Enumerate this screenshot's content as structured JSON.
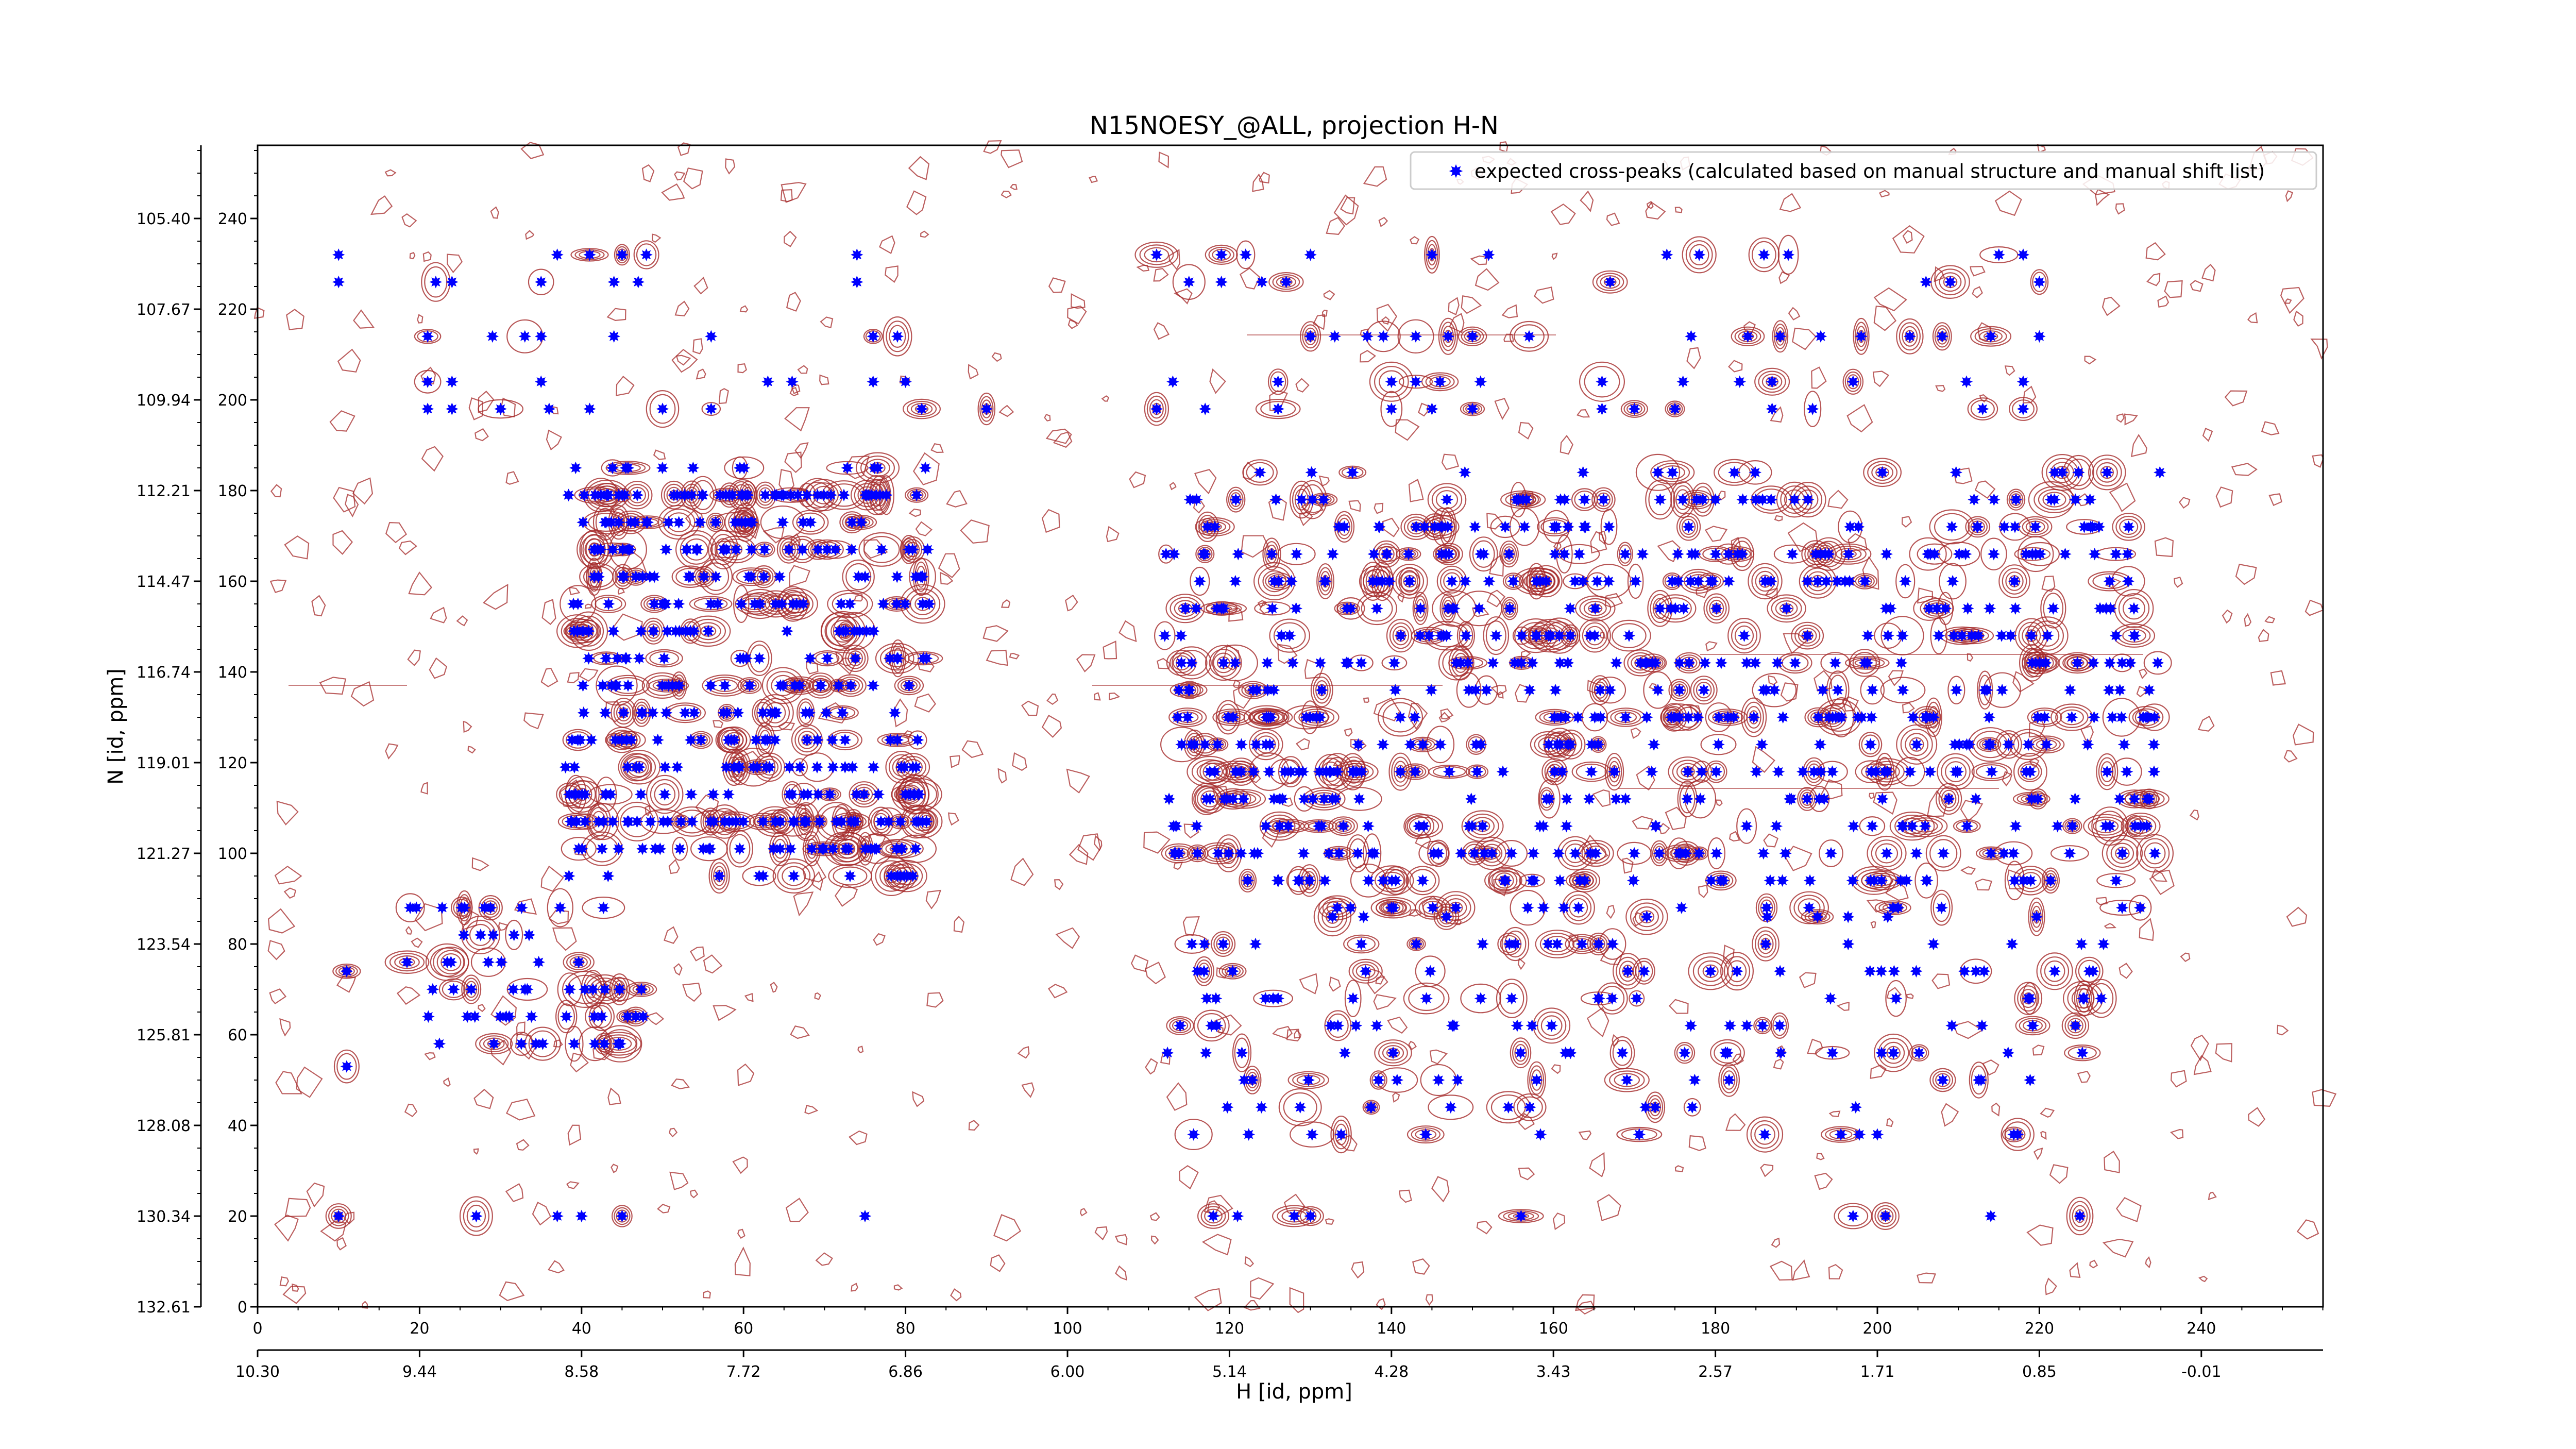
{
  "chart_data": {
    "type": "scatter",
    "title": "N15NOESY_@ALL, projection H-N",
    "xlabel": "H [id, ppm]",
    "ylabel": "N [id, ppm]",
    "xlim": [
      0,
      255
    ],
    "ylim": [
      0,
      256
    ],
    "x_ticks": [
      0,
      20,
      40,
      60,
      80,
      100,
      120,
      140,
      160,
      180,
      200,
      220,
      240
    ],
    "y_ticks": [
      0,
      20,
      40,
      60,
      80,
      100,
      120,
      140,
      160,
      180,
      200,
      220,
      240
    ],
    "x_ppm_ticks": [
      "10.30",
      "9.44",
      "8.58",
      "7.72",
      "6.86",
      "6.00",
      "5.14",
      "4.28",
      "3.43",
      "2.57",
      "1.71",
      "0.85",
      "-0.01"
    ],
    "y_ppm_ticks": [
      "132.61",
      "130.34",
      "128.08",
      "125.81",
      "123.54",
      "121.27",
      "119.01",
      "116.74",
      "114.47",
      "112.21",
      "109.94",
      "107.67",
      "105.40"
    ],
    "grid": false,
    "legend_position": "top-right",
    "legend": [
      "expected cross-peaks (calculated based on manual structure and manual shift list)"
    ],
    "contour_color": "#a52a2a",
    "marker_color": "#0000ff",
    "series": [
      {
        "name": "expected cross-peaks (calculated based on manual structure and manual shift list)",
        "marker": "star",
        "points": [
          [
            10,
            232
          ],
          [
            10,
            226
          ],
          [
            11,
            74
          ],
          [
            11,
            53
          ],
          [
            10,
            20
          ],
          [
            27,
            20
          ],
          [
            37,
            20
          ],
          [
            40,
            20
          ],
          [
            45,
            20
          ],
          [
            75,
            20
          ],
          [
            118,
            20
          ],
          [
            121,
            20
          ],
          [
            128,
            20
          ],
          [
            130,
            20
          ],
          [
            156,
            20
          ],
          [
            197,
            20
          ],
          [
            201,
            20
          ],
          [
            214,
            20
          ],
          [
            225,
            20
          ],
          [
            37,
            232
          ],
          [
            41,
            232
          ],
          [
            45,
            232
          ],
          [
            48,
            232
          ],
          [
            74,
            232
          ],
          [
            111,
            232
          ],
          [
            119,
            232
          ],
          [
            122,
            232
          ],
          [
            130,
            232
          ],
          [
            145,
            232
          ],
          [
            152,
            232
          ],
          [
            174,
            232
          ],
          [
            178,
            232
          ],
          [
            186,
            232
          ],
          [
            189,
            232
          ],
          [
            215,
            232
          ],
          [
            218,
            232
          ],
          [
            22,
            226
          ],
          [
            24,
            226
          ],
          [
            35,
            226
          ],
          [
            44,
            226
          ],
          [
            47,
            226
          ],
          [
            74,
            226
          ],
          [
            115,
            226
          ],
          [
            119,
            226
          ],
          [
            124,
            226
          ],
          [
            127,
            226
          ],
          [
            167,
            226
          ],
          [
            206,
            226
          ],
          [
            209,
            226
          ],
          [
            220,
            226
          ],
          [
            21,
            214
          ],
          [
            29,
            214
          ],
          [
            33,
            214
          ],
          [
            35,
            214
          ],
          [
            44,
            214
          ],
          [
            56,
            214
          ],
          [
            76,
            214
          ],
          [
            79,
            214
          ],
          [
            130,
            214
          ],
          [
            133,
            214
          ],
          [
            137,
            214
          ],
          [
            139,
            214
          ],
          [
            143,
            214
          ],
          [
            147,
            214
          ],
          [
            150,
            214
          ],
          [
            157,
            214
          ],
          [
            177,
            214
          ],
          [
            184,
            214
          ],
          [
            188,
            214
          ],
          [
            193,
            214
          ],
          [
            198,
            214
          ],
          [
            204,
            214
          ],
          [
            208,
            214
          ],
          [
            214,
            214
          ],
          [
            220,
            214
          ],
          [
            21,
            204
          ],
          [
            24,
            204
          ],
          [
            35,
            204
          ],
          [
            63,
            204
          ],
          [
            66,
            204
          ],
          [
            76,
            204
          ],
          [
            80,
            204
          ],
          [
            113,
            204
          ],
          [
            126,
            204
          ],
          [
            140,
            204
          ],
          [
            143,
            204
          ],
          [
            146,
            204
          ],
          [
            151,
            204
          ],
          [
            166,
            204
          ],
          [
            176,
            204
          ],
          [
            183,
            204
          ],
          [
            187,
            204
          ],
          [
            197,
            204
          ],
          [
            211,
            204
          ],
          [
            218,
            204
          ],
          [
            21,
            198
          ],
          [
            24,
            198
          ],
          [
            30,
            198
          ],
          [
            36,
            198
          ],
          [
            41,
            198
          ],
          [
            50,
            198
          ],
          [
            56,
            198
          ],
          [
            82,
            198
          ],
          [
            90,
            198
          ],
          [
            111,
            198
          ],
          [
            117,
            198
          ],
          [
            126,
            198
          ],
          [
            140,
            198
          ],
          [
            145,
            198
          ],
          [
            150,
            198
          ],
          [
            166,
            198
          ],
          [
            170,
            198
          ],
          [
            175,
            198
          ],
          [
            187,
            198
          ],
          [
            192,
            198
          ],
          [
            213,
            198
          ],
          [
            218,
            198
          ]
        ]
      }
    ],
    "dense_regions": [
      {
        "x": [
          38,
          83
        ],
        "y": [
          95,
          185
        ],
        "count": 420
      },
      {
        "x": [
          18,
          48
        ],
        "y": [
          58,
          90
        ],
        "count": 60
      },
      {
        "x": [
          112,
          166
        ],
        "y": [
          88,
          184
        ],
        "count": 300
      },
      {
        "x": [
          160,
          235
        ],
        "y": [
          88,
          184
        ],
        "count": 380
      },
      {
        "x": [
          112,
          228
        ],
        "y": [
          38,
          86
        ],
        "count": 150
      }
    ]
  }
}
